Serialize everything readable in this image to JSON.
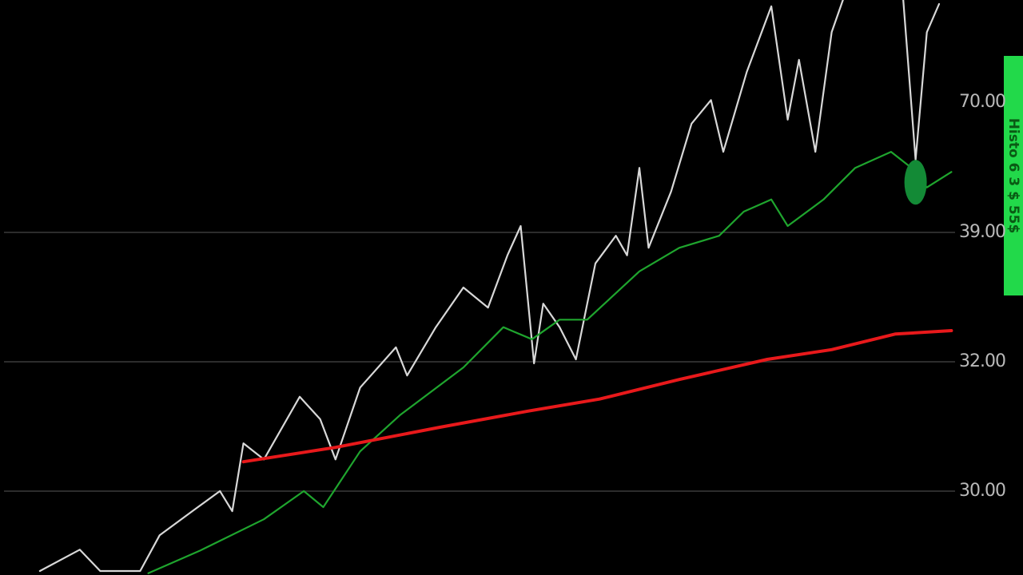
{
  "chart_data": {
    "type": "line",
    "price_labels": [
      "70.00",
      "39.00",
      "32.00",
      "30.00"
    ],
    "badge": "Histo 6 3 $ 55$",
    "xlim": [
      0,
      100
    ],
    "ylim": [
      0,
      100
    ],
    "series": [
      {
        "color": "#d8d8d8",
        "x": [
          3.9,
          7.8,
          9.8,
          13.7,
          15.6,
          18.8,
          21.5,
          22.7,
          23.8,
          25.8,
          29.3,
          31.3,
          32.8,
          35.2,
          38.7,
          39.8,
          42.6,
          45.3,
          47.7,
          49.6,
          50.9,
          52.2,
          53.1,
          54.7,
          56.3,
          58.2,
          60.2,
          61.3,
          62.5,
          63.4,
          65.6,
          67.6,
          69.5,
          70.7,
          73.0,
          75.4,
          77.0,
          78.1,
          79.7,
          81.3,
          82.4,
          85.0,
          88.3,
          89.5,
          90.6,
          91.8
        ],
        "values": [
          0.7,
          4.4,
          0.7,
          0.7,
          6.9,
          11.1,
          14.6,
          11.1,
          22.9,
          20.1,
          31.0,
          27.1,
          20.1,
          32.6,
          39.6,
          34.7,
          43.1,
          50.0,
          46.5,
          55.6,
          60.7,
          36.8,
          47.2,
          43.1,
          37.5,
          54.2,
          59.0,
          55.6,
          70.8,
          56.9,
          66.7,
          78.5,
          82.6,
          73.6,
          87.5,
          98.9,
          79.2,
          89.6,
          73.6,
          94.4,
          100,
          null,
          100,
          72.2,
          94.4,
          99.3
        ]
      },
      {
        "color": "#1fa52e",
        "x": [
          14.5,
          19.5,
          25.8,
          29.7,
          31.6,
          35.2,
          39.1,
          45.3,
          49.2,
          52.0,
          54.7,
          57.4,
          62.5,
          66.4,
          70.3,
          72.7,
          75.4,
          77.0,
          80.5,
          83.6,
          87.1,
          89.1,
          90.6,
          93.0
        ],
        "values": [
          0.3,
          4.2,
          9.7,
          14.6,
          11.8,
          21.5,
          27.8,
          36.1,
          43.1,
          41.0,
          44.4,
          44.4,
          52.8,
          56.9,
          59.0,
          63.2,
          65.3,
          60.7,
          65.3,
          70.8,
          73.6,
          70.8,
          67.4,
          70.1
        ]
      },
      {
        "color": "#e8191b",
        "x": [
          23.8,
          32.8,
          43.0,
          51.6,
          58.6,
          66.4,
          75.0,
          81.3,
          87.5,
          93.0
        ],
        "values": [
          19.7,
          22.2,
          25.7,
          28.5,
          30.6,
          34.0,
          37.5,
          39.2,
          41.9,
          42.5
        ]
      }
    ],
    "highlight": {
      "x": 89.5,
      "value": 68.3,
      "color": "#138a36"
    }
  }
}
